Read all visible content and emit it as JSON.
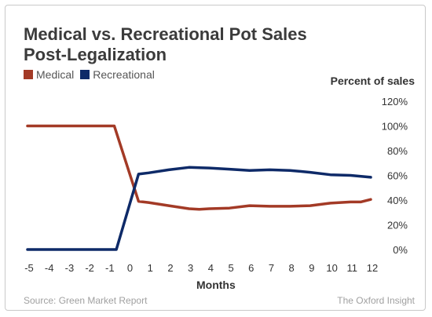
{
  "title_line1": "Medical vs. Recreational Pot Sales",
  "title_line2": "Post-Legalization",
  "source": "Source: Green Market Report",
  "credit": "The Oxford Insight",
  "chart_data": {
    "type": "line",
    "title": "Medical vs. Recreational Pot Sales Post-Legalization",
    "xlabel": "Months",
    "ylabel": "Percent of sales",
    "x_ticks": [
      "-5",
      "-4",
      "-3",
      "-2",
      "-1",
      "0",
      "1",
      "2",
      "3",
      "4",
      "5",
      "6",
      "7",
      "8",
      "9",
      "10",
      "11",
      "12"
    ],
    "y_ticks": [
      "0%",
      "20%",
      "40%",
      "60%",
      "80%",
      "100%",
      "120%"
    ],
    "xlim": [
      -5,
      12
    ],
    "ylim": [
      0,
      120
    ],
    "grid": false,
    "legend_placement": "top-left",
    "series": [
      {
        "name": "Medical",
        "color": "#a33a26",
        "points": [
          [
            -5,
            100
          ],
          [
            -4,
            100
          ],
          [
            -3,
            100
          ],
          [
            -2,
            100
          ],
          [
            -1,
            100
          ],
          [
            -0.7,
            100
          ],
          [
            0.5,
            39
          ],
          [
            1,
            38
          ],
          [
            2,
            35.5
          ],
          [
            3,
            33
          ],
          [
            3.5,
            32.5
          ],
          [
            4,
            33
          ],
          [
            5,
            33.5
          ],
          [
            6,
            35.5
          ],
          [
            7,
            35
          ],
          [
            8,
            35
          ],
          [
            9,
            35.5
          ],
          [
            10,
            37.5
          ],
          [
            11,
            38.5
          ],
          [
            11.5,
            38.5
          ],
          [
            12,
            40.5
          ]
        ]
      },
      {
        "name": "Recreational",
        "color": "#0e2a68",
        "points": [
          [
            -5,
            0
          ],
          [
            -4,
            0
          ],
          [
            -3,
            0
          ],
          [
            -2,
            0
          ],
          [
            -1,
            0
          ],
          [
            -0.6,
            0
          ],
          [
            0.5,
            61
          ],
          [
            1,
            62
          ],
          [
            2,
            64.5
          ],
          [
            3,
            66.5
          ],
          [
            4,
            66
          ],
          [
            5,
            65
          ],
          [
            6,
            64
          ],
          [
            7,
            64.5
          ],
          [
            8,
            64
          ],
          [
            9,
            62.5
          ],
          [
            10,
            60.5
          ],
          [
            11,
            60
          ],
          [
            12,
            58.5
          ]
        ]
      }
    ]
  }
}
